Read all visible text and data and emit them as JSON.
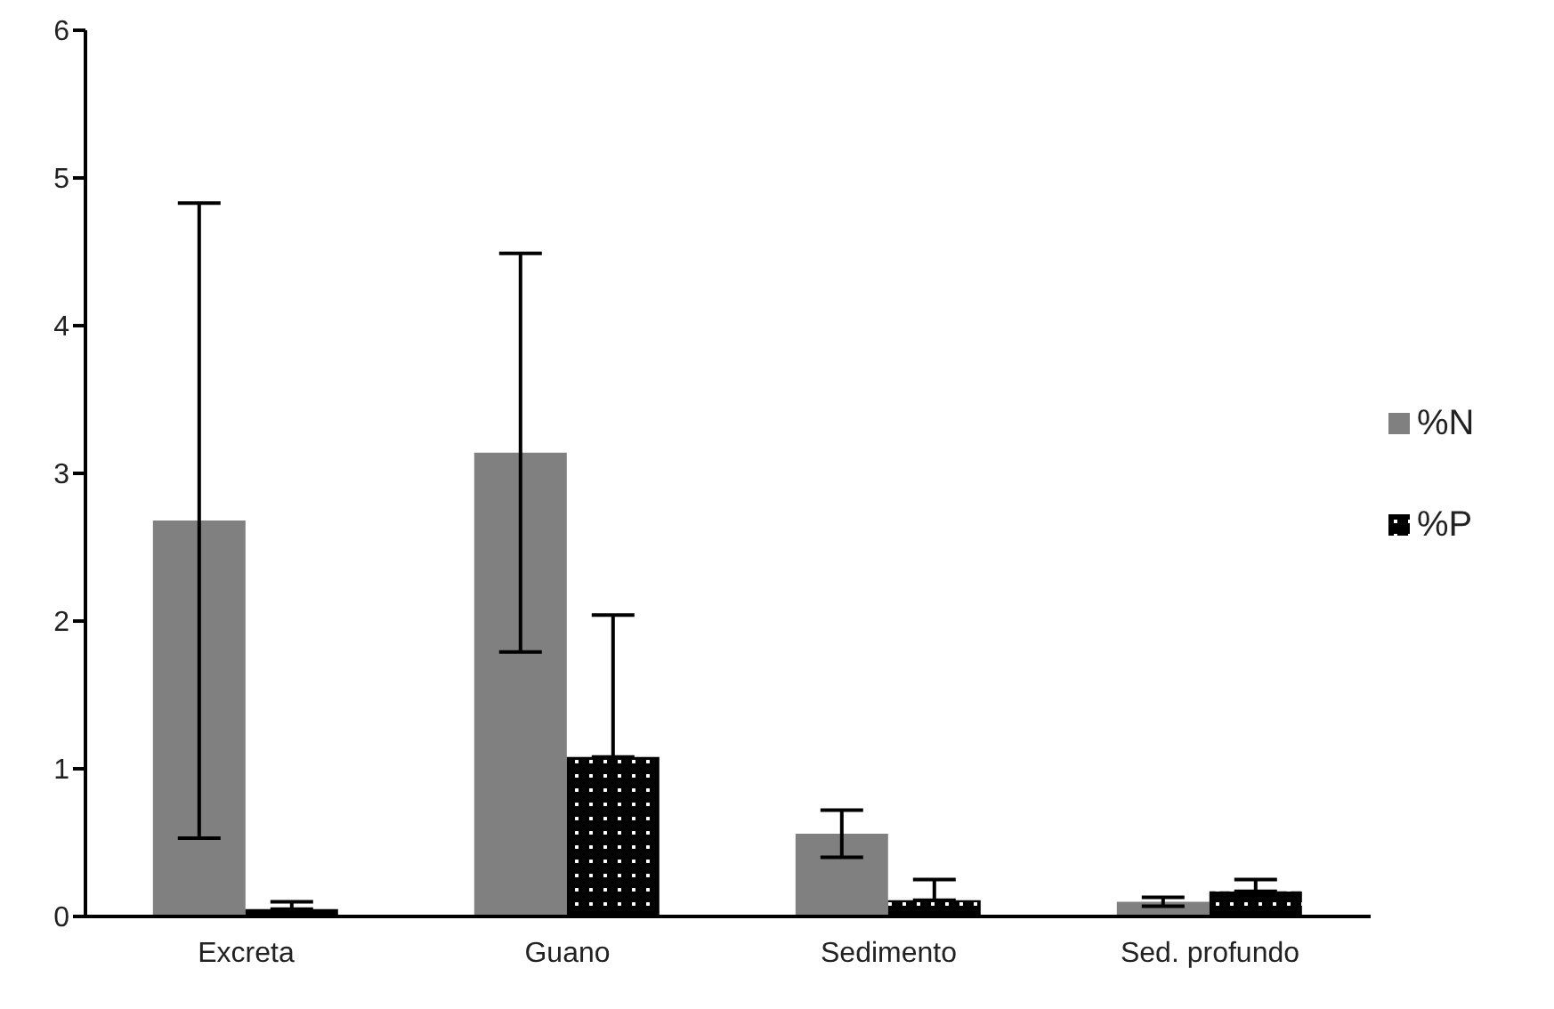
{
  "chart_data": {
    "type": "bar",
    "categories": [
      "Excreta",
      "Guano",
      "Sedimento",
      "Sed. profundo"
    ],
    "series": [
      {
        "name": "%N",
        "color": "#808080",
        "values": [
          2.68,
          3.14,
          0.56,
          0.1
        ],
        "errors": [
          2.15,
          1.35,
          0.16,
          0.03
        ]
      },
      {
        "name": "%P",
        "color": "#000000",
        "values": [
          0.05,
          1.08,
          0.11,
          0.17
        ],
        "errors": [
          [
            0.05,
            0.1
          ],
          [
            1.08,
            2.04
          ],
          [
            0.11,
            0.25
          ],
          [
            0.17,
            0.25
          ]
        ]
      }
    ],
    "ylim": [
      0,
      6
    ],
    "yticks": [
      0,
      1,
      2,
      3,
      4,
      5,
      6
    ],
    "grid": false,
    "legend": "right"
  }
}
